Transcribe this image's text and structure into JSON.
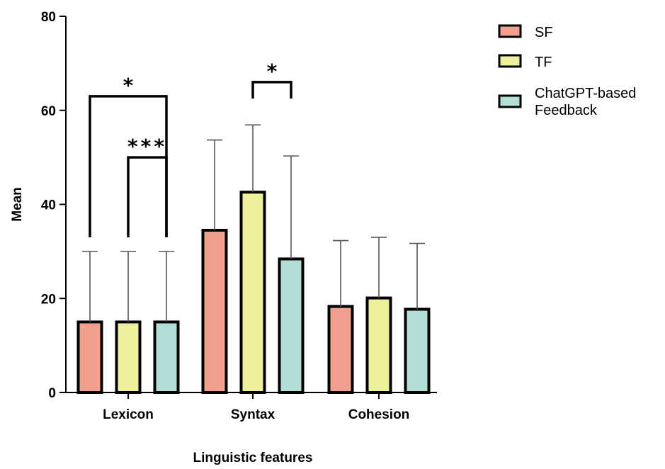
{
  "chart_data": {
    "type": "bar",
    "title": "",
    "xlabel": "Linguistic features",
    "ylabel": "Mean",
    "ylim": [
      0,
      80
    ],
    "yticks": [
      0,
      20,
      40,
      60,
      80
    ],
    "categories": [
      "Lexicon",
      "Syntax",
      "Cohesion"
    ],
    "series": [
      {
        "name": "SF",
        "color": "#f0a08c",
        "values": [
          15,
          34.5,
          18.3
        ],
        "errors": [
          15,
          19.2,
          14
        ]
      },
      {
        "name": "TF",
        "color": "#eef09a",
        "values": [
          15,
          42.6,
          20.1
        ],
        "errors": [
          15,
          14.3,
          12.9
        ]
      },
      {
        "name": "ChatGPT-based Feedback",
        "color": "#b1dfd8",
        "values": [
          15,
          28.4,
          17.7
        ],
        "errors": [
          15,
          21.9,
          14
        ]
      }
    ],
    "significance": [
      {
        "category": "Lexicon",
        "from_series": 0,
        "to_series": 2,
        "label": "*",
        "level": 63
      },
      {
        "category": "Lexicon",
        "from_series": 1,
        "to_series": 2,
        "label": "***",
        "level": 50
      },
      {
        "category": "Syntax",
        "from_series": 1,
        "to_series": 2,
        "label": "*",
        "level": 66
      }
    ],
    "legend": {
      "position": "top-right",
      "entries": [
        "SF",
        "TF",
        "ChatGPT-based\nFeedback"
      ]
    },
    "grid": false
  }
}
